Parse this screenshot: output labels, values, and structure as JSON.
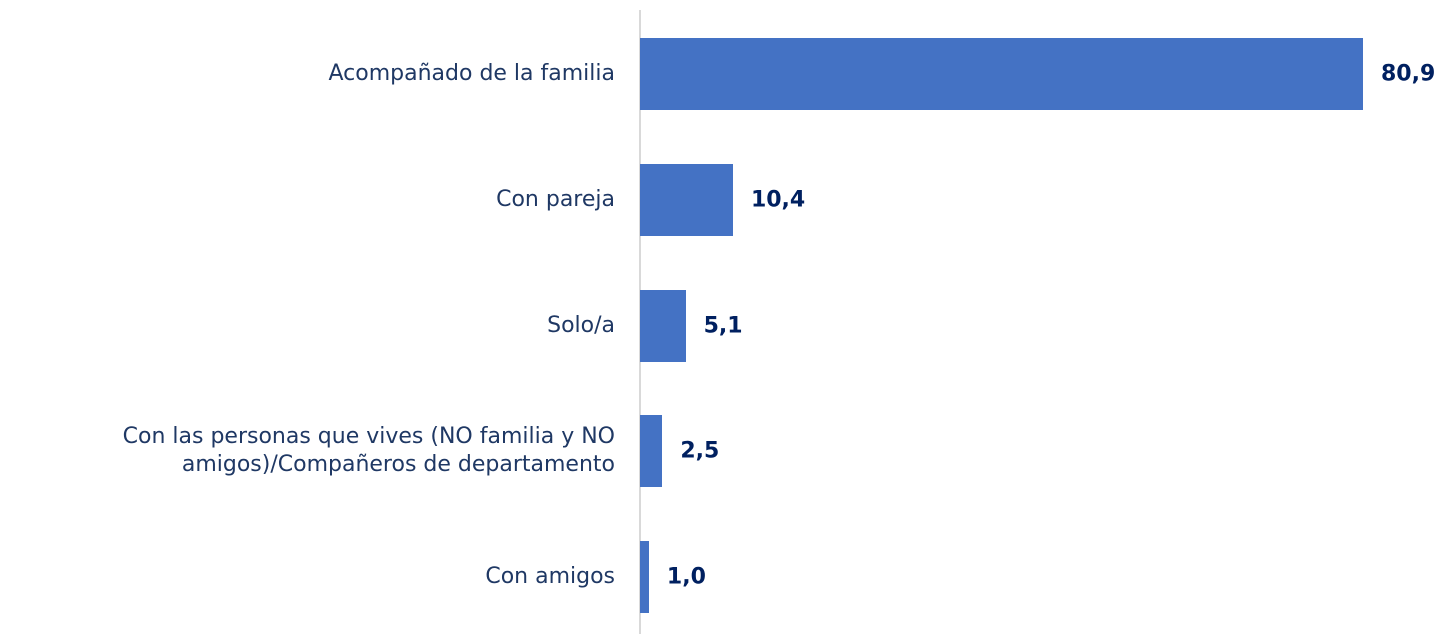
{
  "chart_data": {
    "type": "bar",
    "orientation": "horizontal",
    "categories": [
      "Acompañado de la familia",
      "Con pareja",
      "Solo/a",
      "Con las personas que vives (NO familia y NO amigos)/Compañeros de departamento",
      "Con amigos"
    ],
    "values": [
      80.9,
      10.4,
      5.1,
      2.5,
      1.0
    ],
    "value_labels": [
      "80,9",
      "10,4",
      "5,1",
      "2,5",
      "1,0"
    ],
    "color": "#4472c4"
  }
}
